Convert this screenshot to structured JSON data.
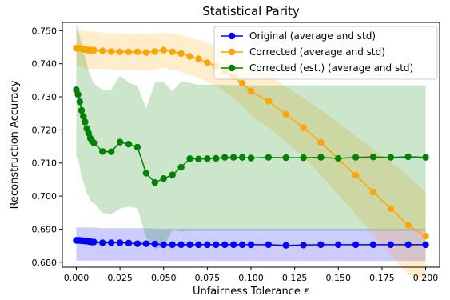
{
  "chart_data": {
    "type": "line",
    "title": "Statistical Parity",
    "xlabel": "Unfairness Tolerance ε",
    "ylabel": "Reconstruction Accuracy",
    "xlim": [
      -0.008,
      0.208
    ],
    "ylim": [
      0.6785,
      0.7525
    ],
    "grid": false,
    "legend_position": "top-right",
    "x_ticks": [
      0.0,
      0.025,
      0.05,
      0.075,
      0.1,
      0.125,
      0.15,
      0.175,
      0.2
    ],
    "x_tick_labels": [
      "0.000",
      "0.025",
      "0.050",
      "0.075",
      "0.100",
      "0.125",
      "0.150",
      "0.175",
      "0.200"
    ],
    "y_ticks": [
      0.68,
      0.69,
      0.7,
      0.71,
      0.72,
      0.73,
      0.74,
      0.75
    ],
    "y_tick_labels": [
      "0.680",
      "0.690",
      "0.700",
      "0.710",
      "0.720",
      "0.730",
      "0.740",
      "0.750"
    ],
    "series": [
      {
        "name": "Original (average and std)",
        "color": "#0000ff",
        "band_color": "#0000ff",
        "x": [
          0.0,
          0.001,
          0.002,
          0.003,
          0.004,
          0.005,
          0.006,
          0.007,
          0.008,
          0.009,
          0.01,
          0.015,
          0.02,
          0.025,
          0.03,
          0.035,
          0.04,
          0.045,
          0.05,
          0.055,
          0.06,
          0.065,
          0.07,
          0.075,
          0.08,
          0.085,
          0.09,
          0.095,
          0.1,
          0.11,
          0.12,
          0.13,
          0.14,
          0.15,
          0.16,
          0.17,
          0.18,
          0.19,
          0.2
        ],
        "y": [
          0.6866,
          0.6866,
          0.6866,
          0.6865,
          0.6865,
          0.6864,
          0.6864,
          0.6863,
          0.6862,
          0.6861,
          0.6861,
          0.6859,
          0.6859,
          0.6859,
          0.6858,
          0.6856,
          0.6856,
          0.6855,
          0.6853,
          0.6853,
          0.6853,
          0.6853,
          0.6853,
          0.6853,
          0.6853,
          0.6853,
          0.6853,
          0.6853,
          0.6853,
          0.6853,
          0.6851,
          0.6852,
          0.6853,
          0.6853,
          0.6853,
          0.6853,
          0.6853,
          0.6853,
          0.6853
        ],
        "upper": [
          0.6905,
          0.6905,
          0.6905,
          0.6905,
          0.6905,
          0.6905,
          0.6905,
          0.6905,
          0.6905,
          0.6905,
          0.6905,
          0.6903,
          0.6903,
          0.6903,
          0.6903,
          0.6903,
          0.6903,
          0.6902,
          0.6901,
          0.6901,
          0.6901,
          0.6901,
          0.6901,
          0.6901,
          0.6901,
          0.6901,
          0.6901,
          0.6901,
          0.6901,
          0.6901,
          0.6901,
          0.6901,
          0.6901,
          0.6901,
          0.6901,
          0.6901,
          0.6901,
          0.6901,
          0.6901
        ],
        "lower": [
          0.6805,
          0.6805,
          0.6805,
          0.6805,
          0.6805,
          0.6805,
          0.6805,
          0.6805,
          0.6805,
          0.6805,
          0.6805,
          0.6805,
          0.6805,
          0.6805,
          0.6805,
          0.6805,
          0.6805,
          0.6805,
          0.6804,
          0.6804,
          0.6804,
          0.6804,
          0.6804,
          0.6804,
          0.6804,
          0.6804,
          0.6804,
          0.6804,
          0.6804,
          0.6804,
          0.6804,
          0.6804,
          0.6804,
          0.6804,
          0.6804,
          0.6804,
          0.6804,
          0.6804,
          0.6804
        ]
      },
      {
        "name": "Corrected (average and std)",
        "color": "#ffa500",
        "band_color": "#ffa500",
        "x": [
          0.0,
          0.001,
          0.002,
          0.003,
          0.004,
          0.005,
          0.006,
          0.007,
          0.008,
          0.009,
          0.01,
          0.015,
          0.02,
          0.025,
          0.03,
          0.035,
          0.04,
          0.045,
          0.05,
          0.055,
          0.06,
          0.065,
          0.07,
          0.075,
          0.08,
          0.085,
          0.09,
          0.095,
          0.1,
          0.11,
          0.12,
          0.13,
          0.14,
          0.15,
          0.16,
          0.17,
          0.18,
          0.19,
          0.2
        ],
        "y": [
          0.7447,
          0.7447,
          0.7446,
          0.7446,
          0.7445,
          0.7443,
          0.7442,
          0.7441,
          0.7441,
          0.7441,
          0.7441,
          0.7439,
          0.7437,
          0.7436,
          0.7436,
          0.7436,
          0.7434,
          0.7437,
          0.7441,
          0.7436,
          0.7431,
          0.7422,
          0.7415,
          0.7403,
          0.7394,
          0.7378,
          0.7361,
          0.7341,
          0.7317,
          0.7287,
          0.7247,
          0.7207,
          0.7162,
          0.7112,
          0.7063,
          0.7012,
          0.6962,
          0.6912,
          0.6879
        ],
        "upper": [
          0.7502,
          0.7502,
          0.7501,
          0.7501,
          0.75,
          0.7499,
          0.7499,
          0.7498,
          0.7498,
          0.7497,
          0.7497,
          0.7494,
          0.7492,
          0.7491,
          0.7491,
          0.7491,
          0.749,
          0.7492,
          0.7494,
          0.7491,
          0.7487,
          0.7478,
          0.7471,
          0.7462,
          0.7454,
          0.7441,
          0.7428,
          0.7409,
          0.7391,
          0.7366,
          0.7331,
          0.7296,
          0.7261,
          0.7221,
          0.7181,
          0.7141,
          0.7101,
          0.7061,
          0.7011
        ],
        "lower": [
          0.7392,
          0.7392,
          0.7391,
          0.7391,
          0.739,
          0.7387,
          0.7385,
          0.7384,
          0.7384,
          0.7385,
          0.7385,
          0.7384,
          0.7382,
          0.7381,
          0.7381,
          0.7381,
          0.7378,
          0.7382,
          0.7388,
          0.7381,
          0.7375,
          0.7366,
          0.7359,
          0.7344,
          0.7334,
          0.7315,
          0.7294,
          0.7273,
          0.7243,
          0.7208,
          0.7163,
          0.7118,
          0.7063,
          0.7003,
          0.6945,
          0.6883,
          0.6823,
          0.6763,
          0.6747
        ]
      },
      {
        "name": "Corrected (est.) (average and std)",
        "color": "#008000",
        "band_color": "#008000",
        "x": [
          0.0,
          0.001,
          0.002,
          0.003,
          0.004,
          0.005,
          0.006,
          0.007,
          0.008,
          0.009,
          0.01,
          0.015,
          0.02,
          0.025,
          0.03,
          0.035,
          0.04,
          0.045,
          0.05,
          0.055,
          0.06,
          0.065,
          0.07,
          0.075,
          0.08,
          0.085,
          0.09,
          0.095,
          0.1,
          0.11,
          0.12,
          0.13,
          0.14,
          0.15,
          0.16,
          0.17,
          0.18,
          0.19,
          0.2
        ],
        "y": [
          0.7321,
          0.7307,
          0.7285,
          0.7259,
          0.7241,
          0.7224,
          0.7204,
          0.719,
          0.7175,
          0.7166,
          0.7161,
          0.7135,
          0.7134,
          0.7163,
          0.7157,
          0.7148,
          0.7069,
          0.7041,
          0.7053,
          0.7064,
          0.7087,
          0.7113,
          0.7112,
          0.7113,
          0.7114,
          0.7117,
          0.7117,
          0.7117,
          0.7115,
          0.7117,
          0.7116,
          0.7116,
          0.7117,
          0.7114,
          0.7117,
          0.7118,
          0.7117,
          0.7119,
          0.7117
        ],
        "upper": [
          0.7522,
          0.7502,
          0.7482,
          0.746,
          0.7441,
          0.742,
          0.74,
          0.738,
          0.7365,
          0.7352,
          0.7341,
          0.7321,
          0.7322,
          0.7364,
          0.7343,
          0.7333,
          0.7264,
          0.7342,
          0.7345,
          0.7317,
          0.7345,
          0.7342,
          0.7336,
          0.7337,
          0.7336,
          0.7336,
          0.7336,
          0.7335,
          0.7335,
          0.7335,
          0.7335,
          0.7335,
          0.7335,
          0.7335,
          0.7335,
          0.7335,
          0.7335,
          0.7335,
          0.7335
        ],
        "lower": [
          0.7121,
          0.7111,
          0.7088,
          0.7057,
          0.7042,
          0.7027,
          0.7008,
          0.7001,
          0.6987,
          0.698,
          0.698,
          0.6949,
          0.6945,
          0.6962,
          0.6968,
          0.6963,
          0.6874,
          0.6841,
          0.6845,
          0.6897,
          0.6893,
          0.6895,
          0.6895,
          0.6895,
          0.6895,
          0.6895,
          0.6895,
          0.6895,
          0.6895,
          0.6895,
          0.6895,
          0.6895,
          0.6895,
          0.6895,
          0.6895,
          0.6895,
          0.6895,
          0.6895,
          0.6895
        ]
      }
    ]
  }
}
